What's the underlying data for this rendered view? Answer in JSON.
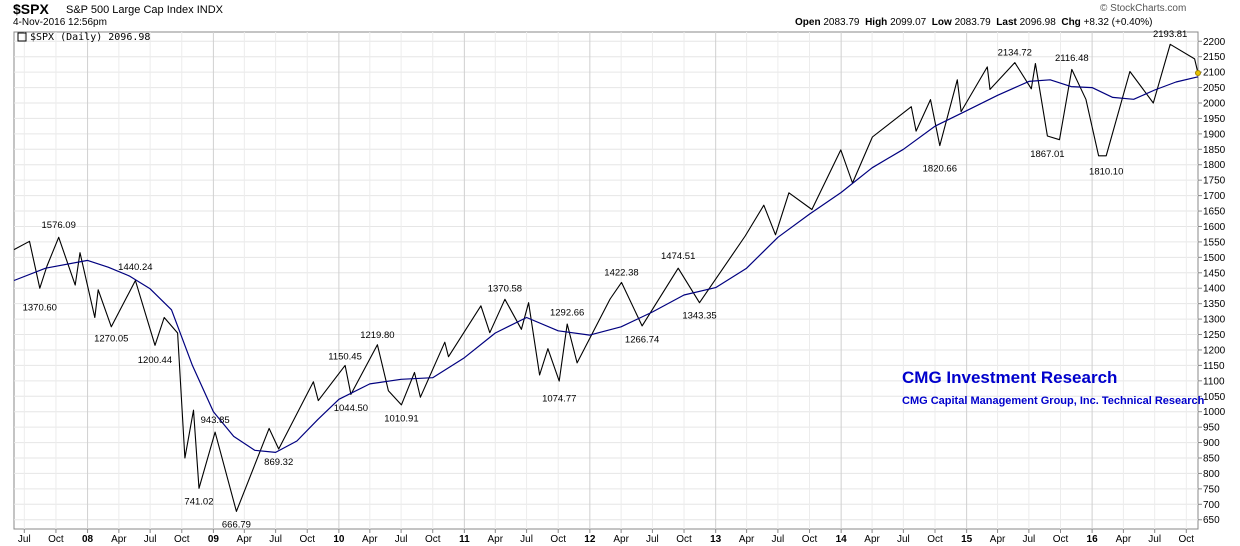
{
  "header": {
    "symbol": "$SPX",
    "description": "S&P 500 Large Cap Index",
    "exchange": "INDX",
    "date": "4-Nov-2016 12:56pm",
    "brand": "© StockCharts.com",
    "open_label": "Open",
    "open": "2083.79",
    "high_label": "High",
    "high": "2099.07",
    "low_label": "Low",
    "low": "2083.79",
    "last_label": "Last",
    "last": "2096.98",
    "chg_label": "Chg",
    "chg": "+8.32 (+0.40%)"
  },
  "legend": {
    "text": "$SPX (Daily) 2096.98"
  },
  "watermark": {
    "title": "CMG Investment Research",
    "subtitle": "CMG Capital Management Group, Inc.  Technical Research",
    "color": "#0000cc"
  },
  "chart_data": {
    "type": "line",
    "x_type": "date",
    "x_range": [
      "2007-06-01",
      "2016-11-04"
    ],
    "ylim": [
      620,
      2230
    ],
    "y_ticks": [
      650,
      700,
      750,
      800,
      850,
      900,
      950,
      1000,
      1050,
      1100,
      1150,
      1200,
      1250,
      1300,
      1350,
      1400,
      1450,
      1500,
      1550,
      1600,
      1650,
      1700,
      1750,
      1800,
      1850,
      1900,
      1950,
      2000,
      2050,
      2100,
      2150,
      2200
    ],
    "x_ticks": [
      {
        "label": "Jul",
        "date": "2007-07-01"
      },
      {
        "label": "Oct",
        "date": "2007-10-01"
      },
      {
        "label": "08",
        "date": "2008-01-01"
      },
      {
        "label": "Apr",
        "date": "2008-04-01"
      },
      {
        "label": "Jul",
        "date": "2008-07-01"
      },
      {
        "label": "Oct",
        "date": "2008-10-01"
      },
      {
        "label": "09",
        "date": "2009-01-01"
      },
      {
        "label": "Apr",
        "date": "2009-04-01"
      },
      {
        "label": "Jul",
        "date": "2009-07-01"
      },
      {
        "label": "Oct",
        "date": "2009-10-01"
      },
      {
        "label": "10",
        "date": "2010-01-01"
      },
      {
        "label": "Apr",
        "date": "2010-04-01"
      },
      {
        "label": "Jul",
        "date": "2010-07-01"
      },
      {
        "label": "Oct",
        "date": "2010-10-01"
      },
      {
        "label": "11",
        "date": "2011-01-01"
      },
      {
        "label": "Apr",
        "date": "2011-04-01"
      },
      {
        "label": "Jul",
        "date": "2011-07-01"
      },
      {
        "label": "Oct",
        "date": "2011-10-01"
      },
      {
        "label": "12",
        "date": "2012-01-01"
      },
      {
        "label": "Apr",
        "date": "2012-04-01"
      },
      {
        "label": "Jul",
        "date": "2012-07-01"
      },
      {
        "label": "Oct",
        "date": "2012-10-01"
      },
      {
        "label": "13",
        "date": "2013-01-01"
      },
      {
        "label": "Apr",
        "date": "2013-04-01"
      },
      {
        "label": "Jul",
        "date": "2013-07-01"
      },
      {
        "label": "Oct",
        "date": "2013-10-01"
      },
      {
        "label": "14",
        "date": "2014-01-01"
      },
      {
        "label": "Apr",
        "date": "2014-04-01"
      },
      {
        "label": "Jul",
        "date": "2014-07-01"
      },
      {
        "label": "Oct",
        "date": "2014-10-01"
      },
      {
        "label": "15",
        "date": "2015-01-01"
      },
      {
        "label": "Apr",
        "date": "2015-04-01"
      },
      {
        "label": "Jul",
        "date": "2015-07-01"
      },
      {
        "label": "Oct",
        "date": "2015-10-01"
      },
      {
        "label": "16",
        "date": "2016-01-01"
      },
      {
        "label": "Apr",
        "date": "2016-04-01"
      },
      {
        "label": "Jul",
        "date": "2016-07-01"
      },
      {
        "label": "Oct",
        "date": "2016-10-01"
      }
    ],
    "grid": true,
    "y_axis_side": "right",
    "series": [
      {
        "color": "#000000",
        "points": [
          [
            "2007-06-01",
            1525
          ],
          [
            "2007-07-16",
            1552
          ],
          [
            "2007-08-15",
            1400
          ],
          [
            "2007-09-05",
            1472
          ],
          [
            "2007-10-09",
            1565
          ],
          [
            "2007-11-26",
            1410
          ],
          [
            "2007-12-10",
            1515
          ],
          [
            "2008-01-22",
            1305
          ],
          [
            "2008-02-01",
            1395
          ],
          [
            "2008-03-10",
            1275
          ],
          [
            "2008-05-19",
            1425
          ],
          [
            "2008-07-15",
            1215
          ],
          [
            "2008-08-11",
            1305
          ],
          [
            "2008-09-19",
            1255
          ],
          [
            "2008-10-10",
            850
          ],
          [
            "2008-11-04",
            1005
          ],
          [
            "2008-11-20",
            752
          ],
          [
            "2009-01-06",
            934
          ],
          [
            "2009-03-09",
            677
          ],
          [
            "2009-06-12",
            946
          ],
          [
            "2009-07-10",
            879
          ],
          [
            "2009-10-19",
            1097
          ],
          [
            "2009-11-02",
            1036
          ],
          [
            "2010-01-19",
            1150
          ],
          [
            "2010-02-05",
            1056
          ],
          [
            "2010-04-23",
            1217
          ],
          [
            "2010-05-25",
            1068
          ],
          [
            "2010-07-02",
            1022
          ],
          [
            "2010-08-09",
            1127
          ],
          [
            "2010-08-26",
            1047
          ],
          [
            "2010-11-05",
            1225
          ],
          [
            "2010-11-16",
            1178
          ],
          [
            "2011-02-18",
            1343
          ],
          [
            "2011-03-16",
            1256
          ],
          [
            "2011-04-29",
            1364
          ],
          [
            "2011-06-16",
            1267
          ],
          [
            "2011-07-07",
            1353
          ],
          [
            "2011-08-08",
            1119
          ],
          [
            "2011-09-01",
            1204
          ],
          [
            "2011-10-04",
            1099
          ],
          [
            "2011-10-27",
            1284
          ],
          [
            "2011-11-25",
            1158
          ],
          [
            "2012-02-29",
            1365
          ],
          [
            "2012-04-02",
            1419
          ],
          [
            "2012-06-01",
            1278
          ],
          [
            "2012-09-14",
            1465
          ],
          [
            "2012-11-15",
            1353
          ],
          [
            "2013-03-28",
            1569
          ],
          [
            "2013-05-21",
            1669
          ],
          [
            "2013-06-24",
            1573
          ],
          [
            "2013-08-02",
            1709
          ],
          [
            "2013-10-08",
            1655
          ],
          [
            "2013-12-31",
            1848
          ],
          [
            "2014-02-03",
            1741
          ],
          [
            "2014-04-02",
            1890
          ],
          [
            "2014-07-24",
            1988
          ],
          [
            "2014-08-07",
            1909
          ],
          [
            "2014-09-18",
            2011
          ],
          [
            "2014-10-15",
            1862
          ],
          [
            "2014-12-05",
            2075
          ],
          [
            "2014-12-16",
            1972
          ],
          [
            "2015-03-02",
            2117
          ],
          [
            "2015-03-10",
            2044
          ],
          [
            "2015-05-21",
            2131
          ],
          [
            "2015-07-08",
            2046
          ],
          [
            "2015-07-20",
            2128
          ],
          [
            "2015-08-24",
            1893
          ],
          [
            "2015-09-28",
            1881
          ],
          [
            "2015-11-03",
            2109
          ],
          [
            "2015-12-14",
            2012
          ],
          [
            "2016-01-20",
            1829
          ],
          [
            "2016-02-11",
            1829
          ],
          [
            "2016-04-20",
            2102
          ],
          [
            "2016-06-27",
            2000
          ],
          [
            "2016-08-15",
            2190
          ],
          [
            "2016-10-25",
            2143
          ],
          [
            "2016-11-04",
            2097
          ]
        ]
      },
      {
        "color": "#00007f",
        "points": [
          [
            "2007-06-01",
            1425
          ],
          [
            "2007-09-01",
            1465
          ],
          [
            "2008-01-01",
            1490
          ],
          [
            "2008-03-01",
            1468
          ],
          [
            "2008-05-01",
            1440
          ],
          [
            "2008-07-01",
            1398
          ],
          [
            "2008-09-01",
            1330
          ],
          [
            "2008-11-01",
            1150
          ],
          [
            "2009-01-01",
            1000
          ],
          [
            "2009-03-01",
            920
          ],
          [
            "2009-05-01",
            875
          ],
          [
            "2009-07-01",
            868
          ],
          [
            "2009-09-01",
            905
          ],
          [
            "2009-11-01",
            975
          ],
          [
            "2010-01-01",
            1040
          ],
          [
            "2010-04-01",
            1090
          ],
          [
            "2010-07-01",
            1105
          ],
          [
            "2010-10-01",
            1110
          ],
          [
            "2011-01-01",
            1175
          ],
          [
            "2011-04-01",
            1255
          ],
          [
            "2011-07-01",
            1305
          ],
          [
            "2011-10-01",
            1262
          ],
          [
            "2012-01-01",
            1248
          ],
          [
            "2012-04-01",
            1275
          ],
          [
            "2012-07-01",
            1323
          ],
          [
            "2012-10-01",
            1378
          ],
          [
            "2013-01-01",
            1402
          ],
          [
            "2013-04-01",
            1465
          ],
          [
            "2013-07-01",
            1565
          ],
          [
            "2013-10-01",
            1640
          ],
          [
            "2014-01-01",
            1710
          ],
          [
            "2014-04-01",
            1790
          ],
          [
            "2014-07-01",
            1850
          ],
          [
            "2014-10-01",
            1925
          ],
          [
            "2015-01-01",
            1975
          ],
          [
            "2015-04-01",
            2025
          ],
          [
            "2015-07-01",
            2070
          ],
          [
            "2015-09-01",
            2075
          ],
          [
            "2015-11-01",
            2053
          ],
          [
            "2016-01-01",
            2050
          ],
          [
            "2016-03-01",
            2018
          ],
          [
            "2016-05-01",
            2012
          ],
          [
            "2016-07-01",
            2042
          ],
          [
            "2016-09-01",
            2068
          ],
          [
            "2016-11-04",
            2085
          ]
        ]
      }
    ],
    "annotations": [
      {
        "text": "1576.09",
        "date": "2007-10-09",
        "value": 1576.09,
        "pos": "above"
      },
      {
        "text": "1370.60",
        "date": "2007-08-15",
        "value": 1370.6,
        "pos": "below"
      },
      {
        "text": "1270.05",
        "date": "2008-03-10",
        "value": 1270.05,
        "pos": "below"
      },
      {
        "text": "1440.24",
        "date": "2008-05-19",
        "value": 1440.24,
        "pos": "above"
      },
      {
        "text": "1200.44",
        "date": "2008-07-15",
        "value": 1200.44,
        "pos": "below"
      },
      {
        "text": "943.85",
        "date": "2009-01-06",
        "value": 943.85,
        "pos": "above"
      },
      {
        "text": "741.02",
        "date": "2008-11-20",
        "value": 741.02,
        "pos": "below"
      },
      {
        "text": "666.79",
        "date": "2009-03-09",
        "value": 666.79,
        "pos": "below"
      },
      {
        "text": "869.32",
        "date": "2009-07-10",
        "value": 869.32,
        "pos": "below"
      },
      {
        "text": "1150.45",
        "date": "2010-01-19",
        "value": 1150.45,
        "pos": "above"
      },
      {
        "text": "1044.50",
        "date": "2010-02-05",
        "value": 1044.5,
        "pos": "below"
      },
      {
        "text": "1219.80",
        "date": "2010-04-23",
        "value": 1219.8,
        "pos": "above"
      },
      {
        "text": "1010.91",
        "date": "2010-07-02",
        "value": 1010.91,
        "pos": "below"
      },
      {
        "text": "1370.58",
        "date": "2011-04-29",
        "value": 1370.58,
        "pos": "above"
      },
      {
        "text": "1074.77",
        "date": "2011-10-04",
        "value": 1074.77,
        "pos": "below"
      },
      {
        "text": "1292.66",
        "date": "2011-10-27",
        "value": 1292.66,
        "pos": "above"
      },
      {
        "text": "1422.38",
        "date": "2012-04-02",
        "value": 1422.38,
        "pos": "above"
      },
      {
        "text": "1266.74",
        "date": "2012-06-01",
        "value": 1266.74,
        "pos": "below"
      },
      {
        "text": "1474.51",
        "date": "2012-09-14",
        "value": 1474.51,
        "pos": "above"
      },
      {
        "text": "1343.35",
        "date": "2012-11-15",
        "value": 1343.35,
        "pos": "below"
      },
      {
        "text": "1820.66",
        "date": "2014-10-15",
        "value": 1820.66,
        "pos": "below"
      },
      {
        "text": "2134.72",
        "date": "2015-05-21",
        "value": 2134.72,
        "pos": "above"
      },
      {
        "text": "1867.01",
        "date": "2015-08-24",
        "value": 1867.01,
        "pos": "below"
      },
      {
        "text": "2116.48",
        "date": "2015-11-03",
        "value": 2116.48,
        "pos": "above"
      },
      {
        "text": "1810.10",
        "date": "2016-02-11",
        "value": 1810.1,
        "pos": "below"
      },
      {
        "text": "2193.81",
        "date": "2016-08-15",
        "value": 2193.81,
        "pos": "above"
      }
    ]
  }
}
